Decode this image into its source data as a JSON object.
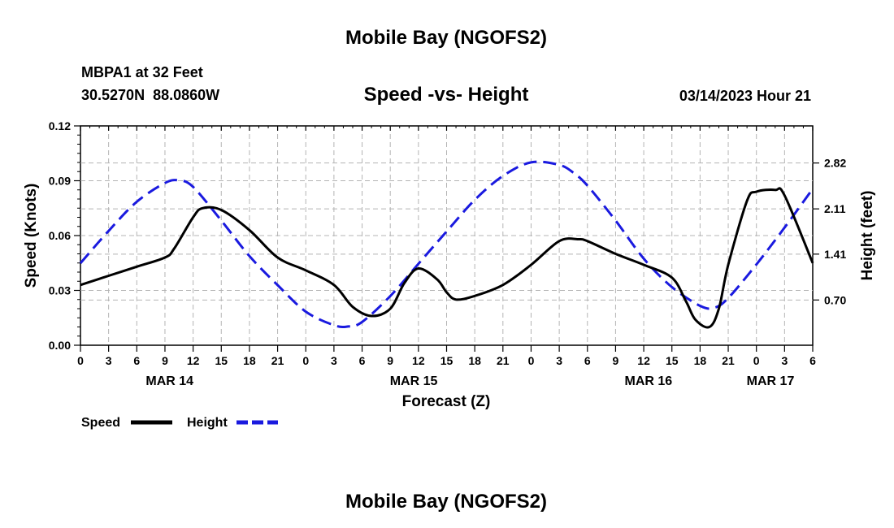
{
  "page": {
    "title_top": "Mobile Bay (NGOFS2)",
    "title_bottom": "Mobile Bay (NGOFS2)",
    "station_line": "MBPA1 at 32 Feet",
    "coords_line": "30.5270N  88.0860W",
    "forecast_time": "03/14/2023 Hour 21",
    "chart_title": "Speed -vs- Height"
  },
  "chart_data": {
    "type": "line",
    "title": "Speed -vs- Height",
    "xlabel": "Forecast (Z)",
    "ylabel": "Speed (Knots)",
    "y2label": "Height (feet)",
    "ylim": [
      0,
      0.12
    ],
    "y2lim": [
      0,
      3.394
    ],
    "xlim": [
      0,
      78
    ],
    "yticks": [
      0.0,
      0.03,
      0.06,
      0.09,
      0.12
    ],
    "ytick_labels": [
      "0.00",
      "0.03",
      "0.06",
      "0.09",
      "0.12"
    ],
    "y2ticks": [
      0.7,
      1.41,
      2.11,
      2.82
    ],
    "y2tick_labels": [
      "0.70",
      "1.41",
      "2.11",
      "2.82"
    ],
    "xticks": [
      0,
      3,
      6,
      9,
      12,
      15,
      18,
      21,
      24,
      27,
      30,
      33,
      36,
      39,
      42,
      45,
      48,
      51,
      54,
      57,
      60,
      63,
      66,
      69,
      72,
      75,
      78
    ],
    "xtick_labels": [
      "0",
      "3",
      "6",
      "9",
      "12",
      "15",
      "18",
      "21",
      "0",
      "3",
      "6",
      "9",
      "12",
      "15",
      "18",
      "21",
      "0",
      "3",
      "6",
      "9",
      "12",
      "15",
      "18",
      "21",
      "0",
      "3",
      "6"
    ],
    "date_labels": [
      {
        "text": "MAR 14",
        "x": 9.5
      },
      {
        "text": "MAR 15",
        "x": 35.5
      },
      {
        "text": "MAR 16",
        "x": 60.5
      },
      {
        "text": "MAR 17",
        "x": 73.5
      }
    ],
    "grid": true,
    "legend": {
      "placement": "bottom-left"
    },
    "series": [
      {
        "name": "Speed",
        "axis": "left",
        "color": "#000000",
        "dash": "solid",
        "x": [
          0,
          3,
          6,
          9,
          10,
          12,
          13,
          15,
          18,
          21,
          24,
          27,
          29,
          31,
          33,
          34.5,
          36,
          38,
          39,
          40,
          42,
          45,
          48,
          51,
          53,
          54,
          57,
          60,
          63,
          64.5,
          65.5,
          67,
          68,
          69,
          71,
          72,
          74,
          75,
          78
        ],
        "y": [
          0.033,
          0.038,
          0.043,
          0.048,
          0.053,
          0.07,
          0.075,
          0.074,
          0.063,
          0.048,
          0.041,
          0.033,
          0.021,
          0.016,
          0.02,
          0.034,
          0.042,
          0.036,
          0.029,
          0.025,
          0.027,
          0.033,
          0.044,
          0.057,
          0.058,
          0.057,
          0.05,
          0.044,
          0.037,
          0.024,
          0.014,
          0.01,
          0.02,
          0.044,
          0.079,
          0.084,
          0.085,
          0.082,
          0.045
        ]
      },
      {
        "name": "Height",
        "axis": "right",
        "color": "#1a1adf",
        "dash": "dashed",
        "x": [
          0,
          3,
          6,
          9,
          10.5,
          12,
          15,
          18,
          21,
          24,
          27,
          28.5,
          30,
          33,
          36,
          39,
          42,
          45,
          48,
          51,
          52.5,
          54,
          57,
          60,
          63,
          66,
          67.5,
          69,
          72,
          75,
          78
        ],
        "y": [
          1.27,
          1.77,
          2.22,
          2.51,
          2.55,
          2.45,
          1.93,
          1.38,
          0.93,
          0.52,
          0.31,
          0.29,
          0.36,
          0.76,
          1.26,
          1.76,
          2.25,
          2.62,
          2.83,
          2.79,
          2.67,
          2.47,
          1.93,
          1.34,
          0.9,
          0.61,
          0.58,
          0.73,
          1.25,
          1.82,
          2.42
        ]
      }
    ]
  }
}
